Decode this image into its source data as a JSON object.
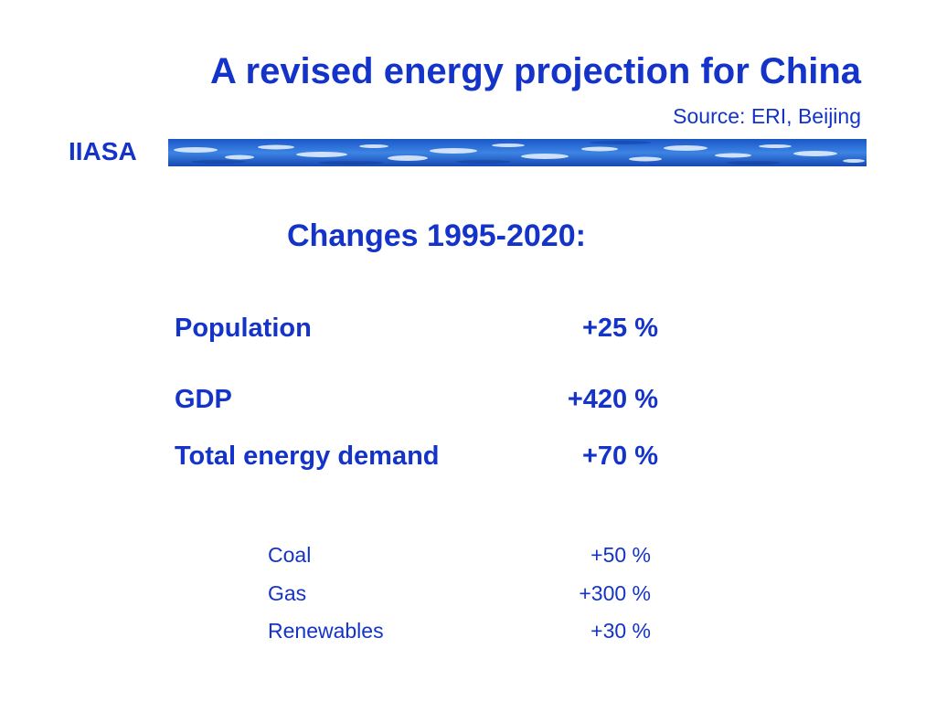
{
  "header": {
    "title": "A revised energy projection for China",
    "source": "Source: ERI, Beijing",
    "org": "IIASA"
  },
  "colors": {
    "text": "#1433c8",
    "band": "#2b6fd6"
  },
  "changes": {
    "heading": "Changes 1995-2020:",
    "main": [
      {
        "label": "Population",
        "value": "+25 %"
      },
      {
        "label": "GDP",
        "value": "+420 %"
      },
      {
        "label": "Total energy demand",
        "value": "+70 %"
      }
    ],
    "breakdown": [
      {
        "label": "Coal",
        "value": "+50 %"
      },
      {
        "label": "Gas",
        "value": "+300 %"
      },
      {
        "label": "Renewables",
        "value": "+30 %"
      }
    ]
  }
}
